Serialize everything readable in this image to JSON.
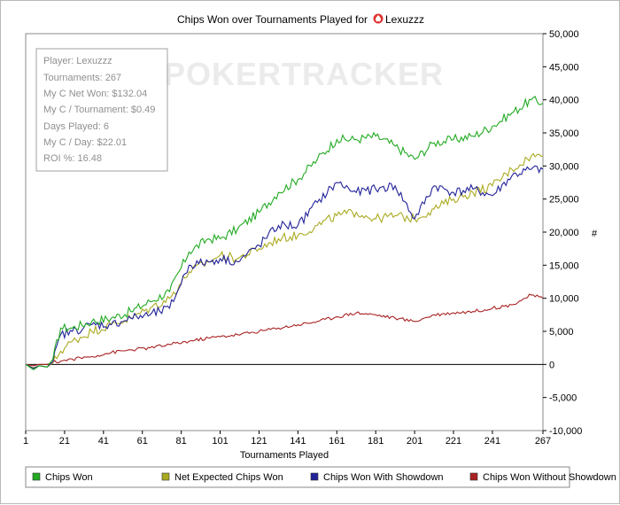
{
  "chart_data": {
    "type": "line",
    "title": "Chips Won over Tournaments Played for",
    "player_name": "Lexuzzz",
    "xlabel": "Tournaments Played",
    "ylabel": "#",
    "xlim": [
      1,
      267
    ],
    "ylim": [
      -10000,
      50000
    ],
    "x_ticks": [
      1,
      21,
      41,
      61,
      81,
      101,
      121,
      141,
      161,
      181,
      201,
      221,
      241,
      267
    ],
    "y_ticks": [
      -10000,
      -5000,
      0,
      5000,
      10000,
      15000,
      20000,
      25000,
      30000,
      35000,
      40000,
      45000,
      50000
    ],
    "y_tick_labels": [
      "-10,000",
      "-5,000",
      "0",
      "5,000",
      "10,000",
      "15,000",
      "20,000",
      "25,000",
      "30,000",
      "35,000",
      "40,000",
      "45,000",
      "50,000"
    ],
    "grid": false,
    "watermark": "POKERTRACKER",
    "info_box": [
      "Player: Lexuzzz",
      "Tournaments: 267",
      "My C Net Won: $132.04",
      "My C / Tournament: $0.49",
      "Days Played: 6",
      "My C / Day: $22.01",
      "ROI %: 16.48"
    ],
    "series": [
      {
        "name": "Chips Won",
        "color": "#22aa22",
        "x": [
          1,
          5,
          8,
          12,
          15,
          19,
          25,
          35,
          45,
          55,
          65,
          75,
          85,
          95,
          101,
          110,
          121,
          131,
          141,
          151,
          161,
          171,
          181,
          191,
          201,
          211,
          221,
          231,
          241,
          251,
          261,
          267
        ],
        "values": [
          0,
          -800,
          -200,
          -400,
          800,
          5500,
          5500,
          6500,
          7000,
          8000,
          9500,
          11000,
          17000,
          19000,
          19000,
          20500,
          23000,
          26000,
          28000,
          31000,
          34000,
          34000,
          34500,
          33000,
          31000,
          33500,
          34000,
          34500,
          36000,
          38000,
          40000,
          39500
        ]
      },
      {
        "name": "Net Expected Chips Won",
        "color": "#aaaa22",
        "x": [
          1,
          5,
          8,
          12,
          15,
          19,
          25,
          35,
          45,
          55,
          65,
          75,
          85,
          95,
          101,
          110,
          121,
          131,
          141,
          151,
          161,
          171,
          181,
          191,
          201,
          211,
          221,
          231,
          241,
          251,
          261,
          267
        ],
        "values": [
          0,
          -500,
          -200,
          -400,
          200,
          2000,
          3500,
          5000,
          6000,
          7000,
          8500,
          10000,
          14000,
          15500,
          16500,
          16000,
          17500,
          19000,
          19500,
          21000,
          22500,
          23000,
          22000,
          22500,
          22000,
          23500,
          25000,
          26000,
          27000,
          29500,
          31500,
          31500
        ]
      },
      {
        "name": "Chips Won With Showdown",
        "color": "#222299",
        "x": [
          1,
          5,
          8,
          12,
          15,
          19,
          25,
          35,
          45,
          55,
          65,
          75,
          85,
          95,
          101,
          110,
          121,
          131,
          141,
          151,
          161,
          171,
          181,
          191,
          201,
          211,
          221,
          231,
          241,
          251,
          261,
          267
        ],
        "values": [
          0,
          -600,
          -200,
          -400,
          400,
          4500,
          5000,
          6000,
          6000,
          7000,
          7500,
          8500,
          15000,
          15500,
          16000,
          15500,
          18000,
          21000,
          21000,
          24500,
          27500,
          26000,
          26500,
          27000,
          22000,
          27000,
          26000,
          26500,
          25500,
          28500,
          29500,
          29500
        ]
      },
      {
        "name": "Chips Won Without Showdown",
        "color": "#aa2222",
        "x": [
          1,
          5,
          8,
          12,
          15,
          19,
          25,
          35,
          45,
          55,
          65,
          75,
          85,
          95,
          101,
          110,
          121,
          131,
          141,
          151,
          161,
          171,
          181,
          191,
          201,
          211,
          221,
          231,
          241,
          251,
          261,
          267
        ],
        "values": [
          0,
          -200,
          0,
          0,
          300,
          500,
          800,
          1200,
          1800,
          2200,
          2500,
          3000,
          3500,
          4000,
          4200,
          4500,
          5000,
          5500,
          6000,
          6500,
          7200,
          7800,
          7500,
          7000,
          6500,
          7500,
          7800,
          8000,
          8500,
          9000,
          10500,
          10000
        ]
      }
    ]
  }
}
